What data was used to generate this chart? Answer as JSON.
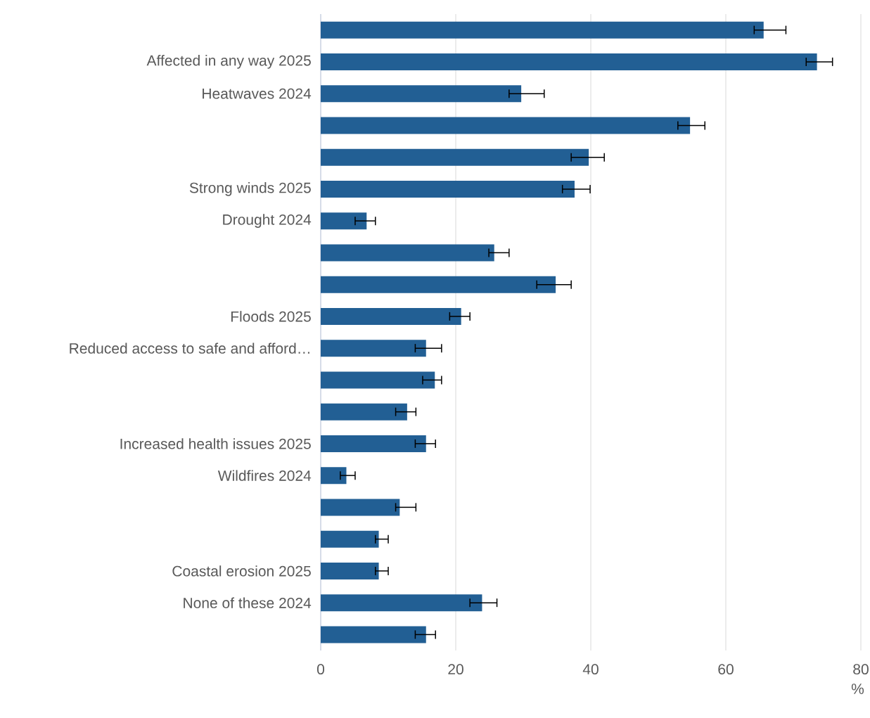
{
  "chart_data": {
    "type": "bar",
    "orientation": "horizontal",
    "xlabel": "%",
    "categories": [
      null,
      "Affected in any way 2025",
      "Heatwaves 2024",
      null,
      null,
      "Strong winds 2025",
      "Drought 2024",
      null,
      null,
      "Floods 2025",
      "Reduced access to safe and afford…",
      null,
      null,
      "Increased health issues 2025",
      "Wildfires 2024",
      null,
      null,
      "Coastal erosion 2025",
      "None of these 2024",
      null
    ],
    "values": [
      65.6,
      73.5,
      29.7,
      54.7,
      39.7,
      37.6,
      6.8,
      25.7,
      34.8,
      20.8,
      15.6,
      16.9,
      12.8,
      15.6,
      3.8,
      11.7,
      8.6,
      8.6,
      23.9,
      15.6
    ],
    "errors": [
      [
        64.2,
        68.9
      ],
      [
        71.9,
        75.8
      ],
      [
        27.9,
        33.1
      ],
      [
        52.9,
        56.9
      ],
      [
        37.1,
        42.0
      ],
      [
        35.8,
        39.9
      ],
      [
        5.1,
        8.1
      ],
      [
        24.9,
        27.9
      ],
      [
        32.0,
        37.1
      ],
      [
        19.1,
        22.1
      ],
      [
        14.0,
        17.9
      ],
      [
        15.1,
        17.9
      ],
      [
        11.1,
        14.1
      ],
      [
        14.0,
        17.0
      ],
      [
        2.9,
        5.1
      ],
      [
        11.1,
        14.1
      ],
      [
        8.1,
        10.0
      ],
      [
        8.1,
        10.0
      ],
      [
        22.1,
        26.1
      ],
      [
        14.0,
        17.0
      ]
    ],
    "color": "#225f94",
    "xlim": [
      0,
      80
    ],
    "xticks": [
      0,
      20,
      40,
      60,
      80
    ],
    "grid": "x"
  }
}
